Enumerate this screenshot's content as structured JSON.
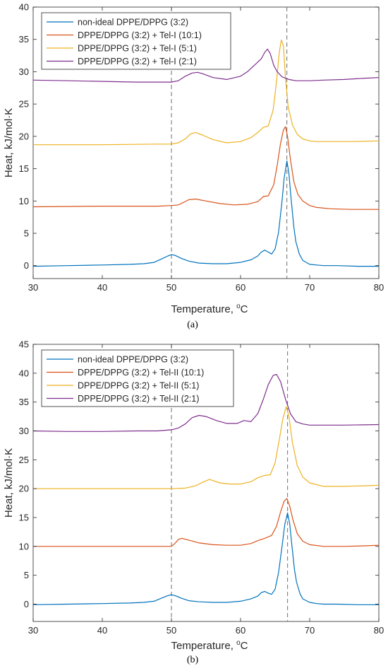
{
  "chart_data": [
    {
      "type": "line",
      "panel_label": "(a)",
      "xlabel": "Temperature, °C",
      "xlabel_main": "Temperature, ",
      "xlabel_sup": "o",
      "xlabel_unit": "C",
      "ylabel": "Heat, kJ/mol·K",
      "xlim": [
        30,
        80
      ],
      "ylim": [
        -2,
        40
      ],
      "xticks": [
        30,
        40,
        50,
        60,
        70,
        80
      ],
      "yticks": [
        0,
        5,
        10,
        15,
        20,
        25,
        30,
        35,
        40
      ],
      "grid": false,
      "legend_position": "top-left",
      "reference_lines_x": [
        50,
        66.7
      ],
      "series": [
        {
          "name": "non-ideal DPPE/DPPG (3:2)",
          "color": "#0072BD",
          "x": [
            30,
            35,
            40,
            44,
            46,
            47.5,
            48.5,
            49.5,
            50,
            50.5,
            51.5,
            52.5,
            54,
            56,
            58,
            60,
            61.5,
            62.5,
            63,
            63.5,
            64,
            64.5,
            65,
            65.5,
            66,
            66.3,
            66.7,
            67,
            67.3,
            67.7,
            68,
            68.5,
            69,
            70,
            71,
            72,
            74,
            77,
            80
          ],
          "y": [
            -0.1,
            0,
            0.1,
            0.2,
            0.3,
            0.5,
            1.0,
            1.5,
            1.7,
            1.6,
            1.1,
            0.7,
            0.4,
            0.3,
            0.3,
            0.5,
            0.9,
            1.5,
            2.1,
            2.4,
            2.1,
            1.8,
            2.6,
            5.2,
            10.0,
            13.5,
            16.2,
            14.2,
            10.5,
            6.0,
            3.7,
            1.8,
            0.8,
            0.2,
            0.1,
            0,
            0,
            -0.1,
            -0.1
          ]
        },
        {
          "name": "DPPE/DPPG (3:2) + Tel-I (10:1)",
          "color": "#D95319",
          "x": [
            30,
            40,
            48,
            50,
            51,
            51.8,
            52.5,
            53.5,
            55,
            57,
            59,
            61,
            62.5,
            63.3,
            64,
            64.8,
            65.3,
            65.8,
            66.2,
            66.5,
            66.8,
            67.2,
            67.7,
            68.3,
            69,
            70,
            71,
            73,
            76,
            80
          ],
          "y": [
            9.1,
            9.2,
            9.2,
            9.3,
            9.4,
            9.8,
            10.2,
            10.3,
            10.0,
            9.6,
            9.4,
            9.5,
            9.9,
            10.7,
            10.8,
            12.5,
            15.5,
            19.0,
            21.0,
            21.5,
            20.0,
            16.5,
            13.0,
            11.0,
            10.0,
            9.3,
            9.0,
            8.8,
            8.7,
            8.7
          ]
        },
        {
          "name": "DPPE/DPPG (3:2) + Tel-I (5:1)",
          "color": "#EDB120",
          "x": [
            30,
            40,
            48,
            50,
            51,
            52,
            52.8,
            53.5,
            54.5,
            56,
            58,
            60,
            61.5,
            62.5,
            63.3,
            64,
            64.7,
            65.2,
            65.6,
            65.9,
            66.2,
            66.5,
            66.9,
            67.5,
            68.2,
            69,
            70,
            71,
            73,
            76,
            80
          ],
          "y": [
            18.7,
            18.7,
            18.8,
            18.8,
            19.0,
            19.6,
            20.4,
            20.6,
            20.2,
            19.5,
            19.0,
            19.2,
            19.8,
            20.6,
            21.4,
            21.6,
            24.0,
            28.5,
            33.0,
            34.9,
            34.0,
            29.0,
            24.5,
            21.8,
            20.3,
            19.6,
            19.3,
            19.2,
            19.2,
            19.2,
            19.3
          ]
        },
        {
          "name": "DPPE/DPPG (3:2) + Tel-I (2:1)",
          "color": "#7E2F8E",
          "x": [
            30,
            35,
            40,
            45,
            50,
            51,
            52,
            53,
            53.8,
            54.5,
            56,
            58,
            60,
            61,
            62,
            63,
            63.5,
            63.9,
            64.3,
            64.8,
            65.3,
            66,
            67,
            68,
            70,
            72,
            75,
            78,
            80
          ],
          "y": [
            28.7,
            28.6,
            28.5,
            28.4,
            28.4,
            28.6,
            29.3,
            29.8,
            29.9,
            29.7,
            29.1,
            28.8,
            29.3,
            30.0,
            31.0,
            32.0,
            33.0,
            33.5,
            32.8,
            31.0,
            30.0,
            29.2,
            28.8,
            28.6,
            28.6,
            28.7,
            28.8,
            29.0,
            29.1
          ]
        }
      ]
    },
    {
      "type": "line",
      "panel_label": "(b)",
      "xlabel": "Temperature, °C",
      "xlabel_main": "Temperature, ",
      "xlabel_sup": "o",
      "xlabel_unit": "C",
      "ylabel": "Heat, kJ/mol·K",
      "xlim": [
        30,
        80
      ],
      "ylim": [
        -3,
        45
      ],
      "xticks": [
        30,
        40,
        50,
        60,
        70,
        80
      ],
      "yticks": [
        0,
        5,
        10,
        15,
        20,
        25,
        30,
        35,
        40,
        45
      ],
      "grid": false,
      "legend_position": "top-left",
      "reference_lines_x": [
        50,
        66.8
      ],
      "series": [
        {
          "name": "non-ideal DPPE/DPPG (3:2)",
          "color": "#0072BD",
          "x": [
            30,
            35,
            40,
            44,
            46,
            47.5,
            48.5,
            49.5,
            50,
            50.5,
            51.5,
            52.5,
            54,
            56,
            58,
            60,
            61.5,
            62.5,
            63,
            63.5,
            64,
            64.5,
            65,
            65.5,
            66,
            66.4,
            66.8,
            67.1,
            67.4,
            67.8,
            68.1,
            68.6,
            69,
            70,
            71,
            72,
            74,
            77,
            80
          ],
          "y": [
            -0.1,
            0,
            0.1,
            0.2,
            0.3,
            0.5,
            1.0,
            1.5,
            1.6,
            1.5,
            1.0,
            0.6,
            0.4,
            0.3,
            0.3,
            0.5,
            0.9,
            1.4,
            2.0,
            2.2,
            1.9,
            1.7,
            2.6,
            5.5,
            10.0,
            13.8,
            15.8,
            14.0,
            10.5,
            6.0,
            3.8,
            1.8,
            0.9,
            0.3,
            0.1,
            0,
            0,
            -0.1,
            -0.1
          ]
        },
        {
          "name": "DPPE/DPPG (3:2) + Tel-II (10:1)",
          "color": "#D95319",
          "x": [
            30,
            40,
            48,
            50,
            50.5,
            51,
            51.5,
            52.5,
            54,
            56,
            58,
            60,
            61.5,
            62.5,
            63.5,
            64.5,
            65.2,
            65.8,
            66.3,
            66.7,
            67.1,
            67.6,
            68.2,
            69,
            70,
            72,
            75,
            78,
            80
          ],
          "y": [
            10,
            10,
            10,
            10,
            10.5,
            11.2,
            11.4,
            11.1,
            10.6,
            10.3,
            10.2,
            10.2,
            10.5,
            11.0,
            11.4,
            11.9,
            13.5,
            16.0,
            17.8,
            18.3,
            17.0,
            14.5,
            12.2,
            10.9,
            10.3,
            10.0,
            10.0,
            10.1,
            10.2
          ]
        },
        {
          "name": "DPPE/DPPG (3:2) + Tel-II (5:1)",
          "color": "#EDB120",
          "x": [
            30,
            40,
            48,
            50,
            52,
            53.5,
            54.5,
            55.5,
            56,
            57,
            58.5,
            60,
            61.5,
            62.5,
            63.5,
            64.3,
            65,
            65.6,
            66.1,
            66.6,
            67,
            67.5,
            68.2,
            69,
            70,
            72,
            75,
            78,
            80
          ],
          "y": [
            20,
            20,
            20,
            20,
            20.1,
            20.5,
            21.1,
            21.6,
            21.4,
            21.0,
            20.8,
            20.8,
            21.2,
            21.9,
            22.3,
            22.4,
            24.5,
            28.5,
            32.0,
            34.2,
            32.5,
            28.0,
            24.0,
            22.0,
            21.0,
            20.4,
            20.4,
            20.5,
            20.6
          ]
        },
        {
          "name": "DPPE/DPPG (3:2) + Tel-II (2:1)",
          "color": "#7E2F8E",
          "x": [
            30,
            35,
            40,
            45,
            48,
            50,
            51,
            52,
            53,
            54,
            55,
            56.5,
            58,
            59.5,
            60.5,
            61.5,
            62.5,
            63.3,
            64,
            64.7,
            65.2,
            65.8,
            66.5,
            67.2,
            68,
            69,
            70,
            72,
            75,
            80
          ],
          "y": [
            30,
            29.9,
            29.9,
            30,
            30,
            30.2,
            30.5,
            31.2,
            32.3,
            32.7,
            32.5,
            31.8,
            31.3,
            31.3,
            31.8,
            31.6,
            33.0,
            35.5,
            38.0,
            39.6,
            39.8,
            38.5,
            35.5,
            33.0,
            31.6,
            31.2,
            31.0,
            31.0,
            31.0,
            31.1
          ]
        }
      ]
    }
  ]
}
